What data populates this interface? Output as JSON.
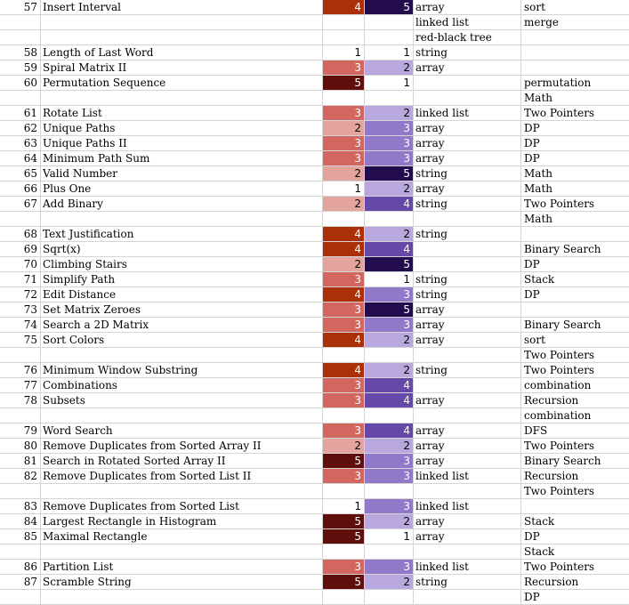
{
  "spreadsheet": {
    "rows": [
      {
        "num": "57",
        "name": "Insert Interval",
        "difficulty": "4",
        "frequency": "5",
        "data_structure": "array",
        "algorithm": "sort"
      },
      {
        "num": "",
        "name": "",
        "difficulty": "",
        "frequency": "",
        "data_structure": "linked list",
        "algorithm": "merge"
      },
      {
        "num": "",
        "name": "",
        "difficulty": "",
        "frequency": "",
        "data_structure": "red-black tree",
        "algorithm": ""
      },
      {
        "num": "58",
        "name": "Length of Last Word",
        "difficulty": "1",
        "frequency": "1",
        "data_structure": "string",
        "algorithm": ""
      },
      {
        "num": "59",
        "name": "Spiral Matrix II",
        "difficulty": "3",
        "frequency": "2",
        "data_structure": "array",
        "algorithm": ""
      },
      {
        "num": "60",
        "name": "Permutation Sequence",
        "difficulty": "5",
        "frequency": "1",
        "data_structure": "",
        "algorithm": "permutation"
      },
      {
        "num": "",
        "name": "",
        "difficulty": "",
        "frequency": "",
        "data_structure": "",
        "algorithm": "Math"
      },
      {
        "num": "61",
        "name": "Rotate List",
        "difficulty": "3",
        "frequency": "2",
        "data_structure": "linked list",
        "algorithm": "Two Pointers"
      },
      {
        "num": "62",
        "name": "Unique Paths",
        "difficulty": "2",
        "frequency": "3",
        "data_structure": "array",
        "algorithm": "DP"
      },
      {
        "num": "63",
        "name": "Unique Paths II",
        "difficulty": "3",
        "frequency": "3",
        "data_structure": "array",
        "algorithm": "DP"
      },
      {
        "num": "64",
        "name": "Minimum Path Sum",
        "difficulty": "3",
        "frequency": "3",
        "data_structure": "array",
        "algorithm": "DP"
      },
      {
        "num": "65",
        "name": "Valid Number",
        "difficulty": "2",
        "frequency": "5",
        "data_structure": "string",
        "algorithm": "Math"
      },
      {
        "num": "66",
        "name": "Plus One",
        "difficulty": "1",
        "frequency": "2",
        "data_structure": "array",
        "algorithm": "Math"
      },
      {
        "num": "67",
        "name": "Add Binary",
        "difficulty": "2",
        "frequency": "4",
        "data_structure": "string",
        "algorithm": "Two Pointers"
      },
      {
        "num": "",
        "name": "",
        "difficulty": "",
        "frequency": "",
        "data_structure": "",
        "algorithm": "Math"
      },
      {
        "num": "68",
        "name": "Text Justification",
        "difficulty": "4",
        "frequency": "2",
        "data_structure": "string",
        "algorithm": ""
      },
      {
        "num": "69",
        "name": "Sqrt(x)",
        "difficulty": "4",
        "frequency": "4",
        "data_structure": "",
        "algorithm": "Binary Search"
      },
      {
        "num": "70",
        "name": "Climbing Stairs",
        "difficulty": "2",
        "frequency": "5",
        "data_structure": "",
        "algorithm": "DP"
      },
      {
        "num": "71",
        "name": "Simplify Path",
        "difficulty": "3",
        "frequency": "1",
        "data_structure": "string",
        "algorithm": "Stack"
      },
      {
        "num": "72",
        "name": "Edit Distance",
        "difficulty": "4",
        "frequency": "3",
        "data_structure": "string",
        "algorithm": "DP"
      },
      {
        "num": "73",
        "name": "Set Matrix Zeroes",
        "difficulty": "3",
        "frequency": "5",
        "data_structure": "array",
        "algorithm": ""
      },
      {
        "num": "74",
        "name": "Search a 2D Matrix",
        "difficulty": "3",
        "frequency": "3",
        "data_structure": "array",
        "algorithm": "Binary Search"
      },
      {
        "num": "75",
        "name": "Sort Colors",
        "difficulty": "4",
        "frequency": "2",
        "data_structure": "array",
        "algorithm": "sort"
      },
      {
        "num": "",
        "name": "",
        "difficulty": "",
        "frequency": "",
        "data_structure": "",
        "algorithm": "Two Pointers"
      },
      {
        "num": "76",
        "name": "Minimum Window Substring",
        "difficulty": "4",
        "frequency": "2",
        "data_structure": "string",
        "algorithm": "Two Pointers"
      },
      {
        "num": "77",
        "name": "Combinations",
        "difficulty": "3",
        "frequency": "4",
        "data_structure": "",
        "algorithm": "combination"
      },
      {
        "num": "78",
        "name": "Subsets",
        "difficulty": "3",
        "frequency": "4",
        "data_structure": "array",
        "algorithm": "Recursion"
      },
      {
        "num": "",
        "name": "",
        "difficulty": "",
        "frequency": "",
        "data_structure": "",
        "algorithm": "combination"
      },
      {
        "num": "79",
        "name": "Word Search",
        "difficulty": "3",
        "frequency": "4",
        "data_structure": "array",
        "algorithm": "DFS"
      },
      {
        "num": "80",
        "name": "Remove Duplicates from Sorted Array II",
        "difficulty": "2",
        "frequency": "2",
        "data_structure": "array",
        "algorithm": "Two Pointers"
      },
      {
        "num": "81",
        "name": "Search in Rotated Sorted Array II",
        "difficulty": "5",
        "frequency": "3",
        "data_structure": "array",
        "algorithm": "Binary Search"
      },
      {
        "num": "82",
        "name": "Remove Duplicates from Sorted List II",
        "difficulty": "3",
        "frequency": "3",
        "data_structure": "linked list",
        "algorithm": "Recursion"
      },
      {
        "num": "",
        "name": "",
        "difficulty": "",
        "frequency": "",
        "data_structure": "",
        "algorithm": "Two Pointers"
      },
      {
        "num": "83",
        "name": "Remove Duplicates from Sorted List",
        "difficulty": "1",
        "frequency": "3",
        "data_structure": "linked list",
        "algorithm": ""
      },
      {
        "num": "84",
        "name": "Largest Rectangle in Histogram",
        "difficulty": "5",
        "frequency": "2",
        "data_structure": "array",
        "algorithm": "Stack"
      },
      {
        "num": "85",
        "name": "Maximal Rectangle",
        "difficulty": "5",
        "frequency": "1",
        "data_structure": "array",
        "algorithm": "DP"
      },
      {
        "num": "",
        "name": "",
        "difficulty": "",
        "frequency": "",
        "data_structure": "",
        "algorithm": "Stack"
      },
      {
        "num": "86",
        "name": "Partition List",
        "difficulty": "3",
        "frequency": "3",
        "data_structure": "linked list",
        "algorithm": "Two Pointers"
      },
      {
        "num": "87",
        "name": "Scramble String",
        "difficulty": "5",
        "frequency": "2",
        "data_structure": "string",
        "algorithm": "Recursion"
      },
      {
        "num": "",
        "name": "",
        "difficulty": "",
        "frequency": "",
        "data_structure": "",
        "algorithm": "DP"
      }
    ]
  },
  "colors": {
    "difficulty_scale": {
      "1": "#ffffff",
      "2": "#e2a49c",
      "3": "#d2675f",
      "4": "#a93008",
      "5": "#5e0f0b"
    },
    "frequency_scale": {
      "1": "#ffffff",
      "2": "#b8a8de",
      "3": "#8f79c8",
      "4": "#6548a8",
      "5": "#230c4e"
    },
    "difficulty_text": {
      "1": "#000000",
      "2": "#000000",
      "3": "#ffffff",
      "4": "#ffffff",
      "5": "#ffffff"
    },
    "frequency_text": {
      "1": "#000000",
      "2": "#000000",
      "3": "#ffffff",
      "4": "#ffffff",
      "5": "#ffffff"
    }
  }
}
